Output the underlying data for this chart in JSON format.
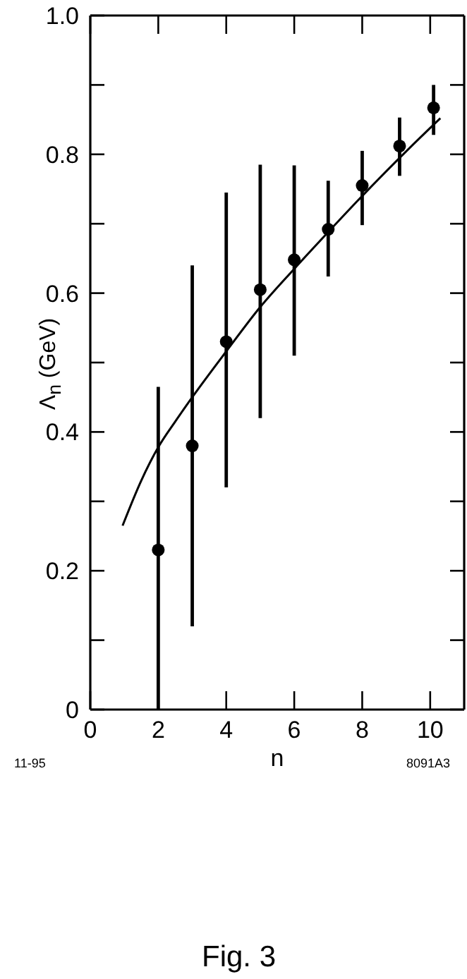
{
  "chart_data": {
    "type": "scatter",
    "xlabel": "n",
    "ylabel": "Λ$_{n}$ (GeV)",
    "annotations": [
      "11-95",
      "8091A3",
      "Fig. 3"
    ],
    "xlim": [
      0,
      11
    ],
    "xticks": [
      0,
      2,
      4,
      6,
      8,
      10
    ],
    "ylim": [
      0,
      1.0
    ],
    "yticks": [
      0,
      {
        "value": 0.1,
        "label": null
      },
      0.2,
      {
        "value": 0.3,
        "label": null
      },
      0.4,
      {
        "value": 0.5,
        "label": null
      },
      0.6,
      {
        "value": 0.7,
        "label": null
      },
      0.8,
      {
        "value": 0.9,
        "label": null
      },
      {
        "value": 1.0,
        "label": "1.0"
      }
    ],
    "series": [
      {
        "color": "#000000",
        "marker": "circle",
        "x": [
          2,
          3,
          4,
          5,
          6,
          7,
          8,
          9.1,
          10.1
        ],
        "values": [
          0.23,
          0.38,
          0.53,
          0.605,
          0.648,
          0.692,
          0.755,
          0.812,
          0.867
        ],
        "errors": [
          [
            0,
            0.465
          ],
          [
            0.12,
            0.64
          ],
          [
            0.32,
            0.745
          ],
          [
            0.42,
            0.785
          ],
          [
            0.51,
            0.784
          ],
          [
            0.624,
            0.762
          ],
          [
            0.698,
            0.805
          ],
          [
            0.769,
            0.853
          ],
          [
            0.828,
            0.9
          ]
        ]
      },
      {
        "type": "line",
        "color": "#000000",
        "marker": "none",
        "line_style": "solid",
        "x": [
          0.95,
          1.5,
          2,
          2.5,
          3,
          4,
          5,
          6,
          7,
          8,
          9,
          10,
          10.3
        ],
        "values": [
          0.265,
          0.33,
          0.378,
          0.415,
          0.45,
          0.516,
          0.58,
          0.635,
          0.688,
          0.74,
          0.79,
          0.838,
          0.852
        ]
      }
    ]
  }
}
